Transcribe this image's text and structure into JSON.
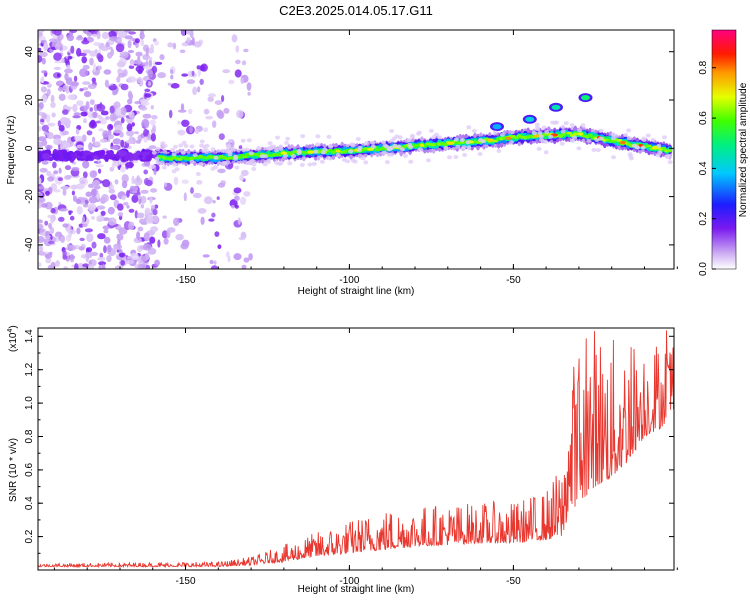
{
  "title": "C2E3.2025.014.05.17.G11",
  "chart_data": [
    {
      "type": "heatmap",
      "title": "C2E3.2025.014.05.17.G11",
      "xlabel": "Height of straight line (km)",
      "ylabel": "Frequency (Hz)",
      "xlim": [
        -195,
        -1
      ],
      "ylim": [
        -50,
        49
      ],
      "x_ticks": [
        -150,
        -100,
        -50
      ],
      "y_ticks": [
        -40,
        -20,
        0,
        20,
        40
      ],
      "colorbar": {
        "label": "Normalized spectral amplitude",
        "range": [
          0.0,
          0.95
        ],
        "ticks": [
          "0.0",
          "0.2",
          "0.4",
          "0.6",
          "0.8"
        ],
        "colormap": "white-violet-blue-cyan-green-yellow-orange-red-magenta"
      },
      "ridge": {
        "description_points_x": [
          -158,
          -140,
          -120,
          -100,
          -80,
          -60,
          -45,
          -30,
          -15,
          -2
        ],
        "description_points_y": [
          -4,
          -4,
          -2,
          -1,
          1,
          3,
          5,
          6,
          2,
          -1
        ],
        "side_branch_x": [
          -55,
          -45,
          -37,
          -28
        ],
        "side_branch_y": [
          9,
          12,
          17,
          21
        ]
      },
      "scatter_region_x": [
        -195,
        -130
      ],
      "scatter_region_y": [
        -50,
        49
      ]
    },
    {
      "type": "line",
      "xlabel": "Height of straight line (km)",
      "ylabel": "SNR (10 * v/v)",
      "y_scale_label": "(x10",
      "y_scale_exp": "4",
      "y_scale_close": ")",
      "xlim": [
        -195,
        -1
      ],
      "ylim": [
        0,
        1.45
      ],
      "x_ticks": [
        -150,
        -100,
        -50
      ],
      "y_ticks": [
        0.2,
        0.4,
        0.6,
        0.8,
        1.0,
        1.2,
        1.4
      ],
      "series_color": "#e8372f",
      "envelope": {
        "x": [
          -195,
          -140,
          -130,
          -120,
          -110,
          -100,
          -90,
          -80,
          -70,
          -60,
          -50,
          -40,
          -35,
          -33,
          -30,
          -25,
          -20,
          -15,
          -10,
          -5,
          -1
        ],
        "base": [
          0.02,
          0.02,
          0.03,
          0.05,
          0.08,
          0.1,
          0.12,
          0.14,
          0.15,
          0.16,
          0.16,
          0.18,
          0.2,
          0.35,
          0.4,
          0.5,
          0.55,
          0.65,
          0.8,
          0.85,
          0.95
        ],
        "amp": [
          0.02,
          0.03,
          0.05,
          0.1,
          0.15,
          0.2,
          0.25,
          0.25,
          0.25,
          0.25,
          0.25,
          0.3,
          0.45,
          0.85,
          0.95,
          1.0,
          0.85,
          0.75,
          0.6,
          0.55,
          0.55
        ]
      }
    }
  ]
}
